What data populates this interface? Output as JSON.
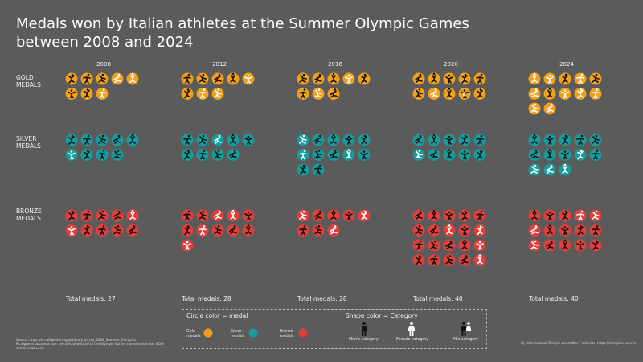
{
  "title": "Medals won by Italian athletes at the Summer Olympic Games between 2008 and 2024",
  "row_labels": [
    "GOLD\nMEDALS",
    "SILVER\nMEDALS",
    "BRONZE\nMEDALS"
  ],
  "colors": {
    "background": "#5b5b5b",
    "gold": "#f0a01c",
    "silver": "#169c9c",
    "bronze": "#e0403c",
    "men": "#111111",
    "women": "#ffffff"
  },
  "chart_data": {
    "type": "table",
    "categories": [
      "2008",
      "2012",
      "2016",
      "2020",
      "2024"
    ],
    "series": [
      {
        "name": "Gold medals",
        "values": [
          8,
          8,
          8,
          10,
          12
        ]
      },
      {
        "name": "Silver medals",
        "values": [
          9,
          9,
          12,
          10,
          13
        ]
      },
      {
        "name": "Bronze medals",
        "values": [
          10,
          11,
          8,
          20,
          15
        ]
      }
    ],
    "totals": [
      "Total medals: 27",
      "Total medals: 28",
      "Total medals: 28",
      "Total medals: 40",
      "Total medals: 40"
    ],
    "categories_by_medal": {
      "gold": [
        [
          "men",
          "men",
          "men",
          "women",
          "women",
          "men",
          "men",
          "women"
        ],
        [
          "men",
          "men",
          "men",
          "men",
          "women",
          "men",
          "women",
          "women"
        ],
        [
          "men",
          "men",
          "men",
          "women",
          "men",
          "men",
          "women",
          "men"
        ],
        [
          "men",
          "men",
          "men",
          "men",
          "men",
          "men",
          "women",
          "men",
          "mix",
          "men"
        ],
        [
          "women",
          "women",
          "men",
          "women",
          "men",
          "women",
          "men",
          "women",
          "women",
          "women",
          "women",
          "women"
        ]
      ],
      "silver": [
        [
          "men",
          "men",
          "men",
          "men",
          "men",
          "women",
          "men",
          "men",
          "men"
        ],
        [
          "men",
          "men",
          "women",
          "men",
          "men",
          "men",
          "men",
          "men",
          "men"
        ],
        [
          "women",
          "men",
          "men",
          "men",
          "men",
          "women",
          "men",
          "men",
          "women",
          "men",
          "men",
          "men"
        ],
        [
          "men",
          "men",
          "men",
          "men",
          "men",
          "women",
          "men",
          "men",
          "men",
          "men"
        ],
        [
          "men",
          "men",
          "men",
          "men",
          "men",
          "men",
          "men",
          "men",
          "women",
          "men",
          "women",
          "women",
          "women"
        ]
      ],
      "bronze": [
        [
          "men",
          "men",
          "men",
          "men",
          "women",
          "women",
          "men",
          "men",
          "men",
          "men"
        ],
        [
          "men",
          "men",
          "women",
          "women",
          "men",
          "men",
          "women",
          "men",
          "men",
          "men",
          "women"
        ],
        [
          "women",
          "men",
          "men",
          "men",
          "women",
          "men",
          "men",
          "women"
        ],
        [
          "men",
          "men",
          "men",
          "men",
          "men",
          "men",
          "men",
          "women",
          "men",
          "women",
          "men",
          "men",
          "men",
          "men",
          "women",
          "men",
          "men",
          "men",
          "men",
          "women"
        ],
        [
          "men",
          "men",
          "men",
          "women",
          "women",
          "women",
          "men",
          "men",
          "men",
          "men",
          "women",
          "men",
          "men",
          "men",
          "men"
        ]
      ]
    }
  },
  "legend": {
    "circle_head": "Circle color = medal",
    "shape_head": "Shape color = Category",
    "gold": "Gold\nmedals",
    "silver": "Silver\nmedals",
    "bronze": "Bronze\nmedals",
    "men": "Men's category",
    "women": "Female category",
    "mix": "Mix category"
  },
  "source": "Source: https://en.wikipedia.org/wiki/Italy_at_the_2024_Summer_Olympics\nPictograms obtained from the official website of the Olympic Games (for editorial use: NON-commercial use)",
  "credit": "By Internacional Olimpic committee / web site: https://olympics.com/en"
}
